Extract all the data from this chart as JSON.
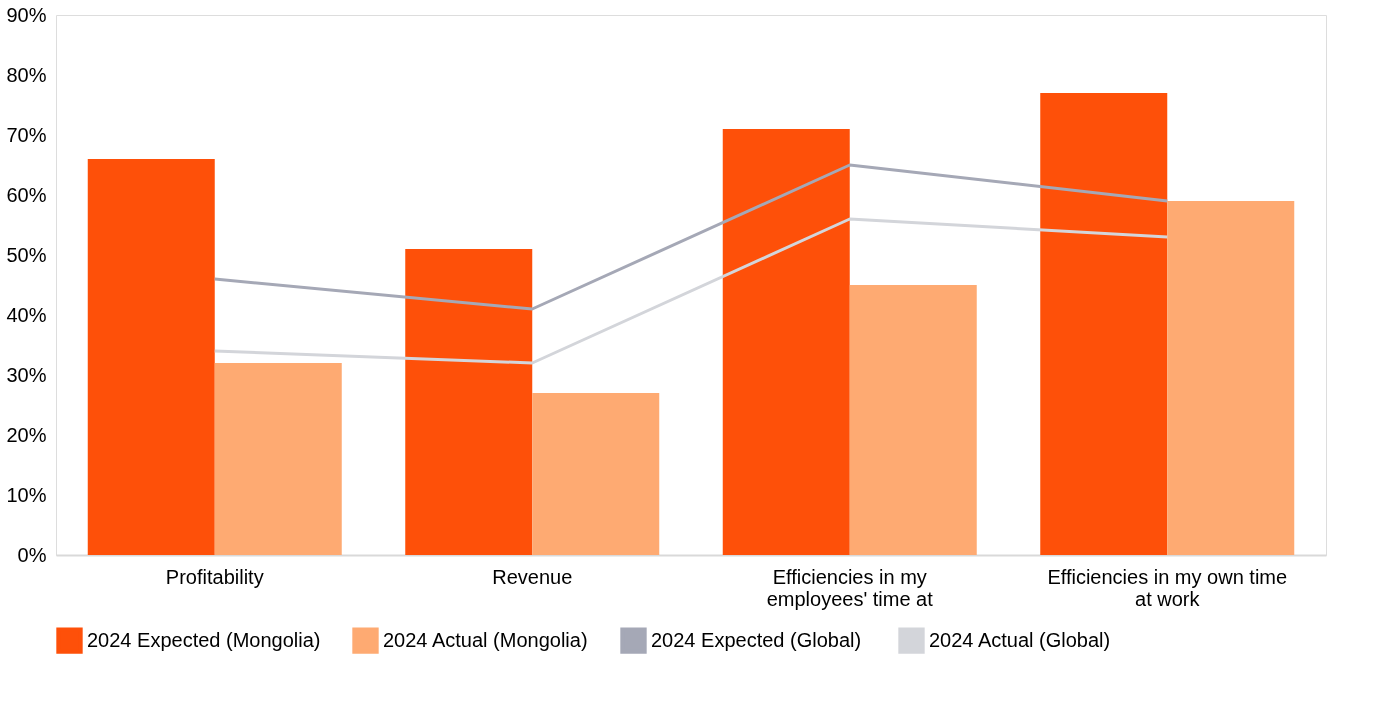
{
  "chart_data": {
    "type": "bar",
    "categories": [
      "Profitability",
      "Revenue",
      "Efficiencies in my employees' time at",
      "Efficiencies in my own time at work"
    ],
    "series": [
      {
        "name": "2024 Expected (Mongolia)",
        "color": "#fe5009",
        "values": [
          66,
          51,
          71,
          77
        ]
      },
      {
        "name": "2024 Actual (Mongolia)",
        "color": "#feaa72",
        "values": [
          32,
          27,
          45,
          59
        ]
      },
      {
        "name": "2024 Expected  (Global)",
        "type": "line",
        "color": "#a5a8b6",
        "values": [
          46,
          41,
          65,
          59
        ]
      },
      {
        "name": "2024 Actual (Global)",
        "type": "line",
        "color": "#d3d5da",
        "values": [
          34,
          32,
          56,
          53
        ]
      }
    ],
    "ylim": [
      0,
      90
    ],
    "yticks": [
      {
        "value": 0,
        "label": "0%"
      },
      {
        "value": 10,
        "label": "10%"
      },
      {
        "value": 20,
        "label": "20%"
      },
      {
        "value": 30,
        "label": "30%"
      },
      {
        "value": 40,
        "label": "40%"
      },
      {
        "value": 50,
        "label": "50%"
      },
      {
        "value": 60,
        "label": "60%"
      },
      {
        "value": 70,
        "label": "70%"
      },
      {
        "value": 80,
        "label": "80%"
      },
      {
        "value": 90,
        "label": "90%"
      }
    ],
    "grid": false,
    "legend": "bottom",
    "marker": "none",
    "line_style": "solid"
  }
}
